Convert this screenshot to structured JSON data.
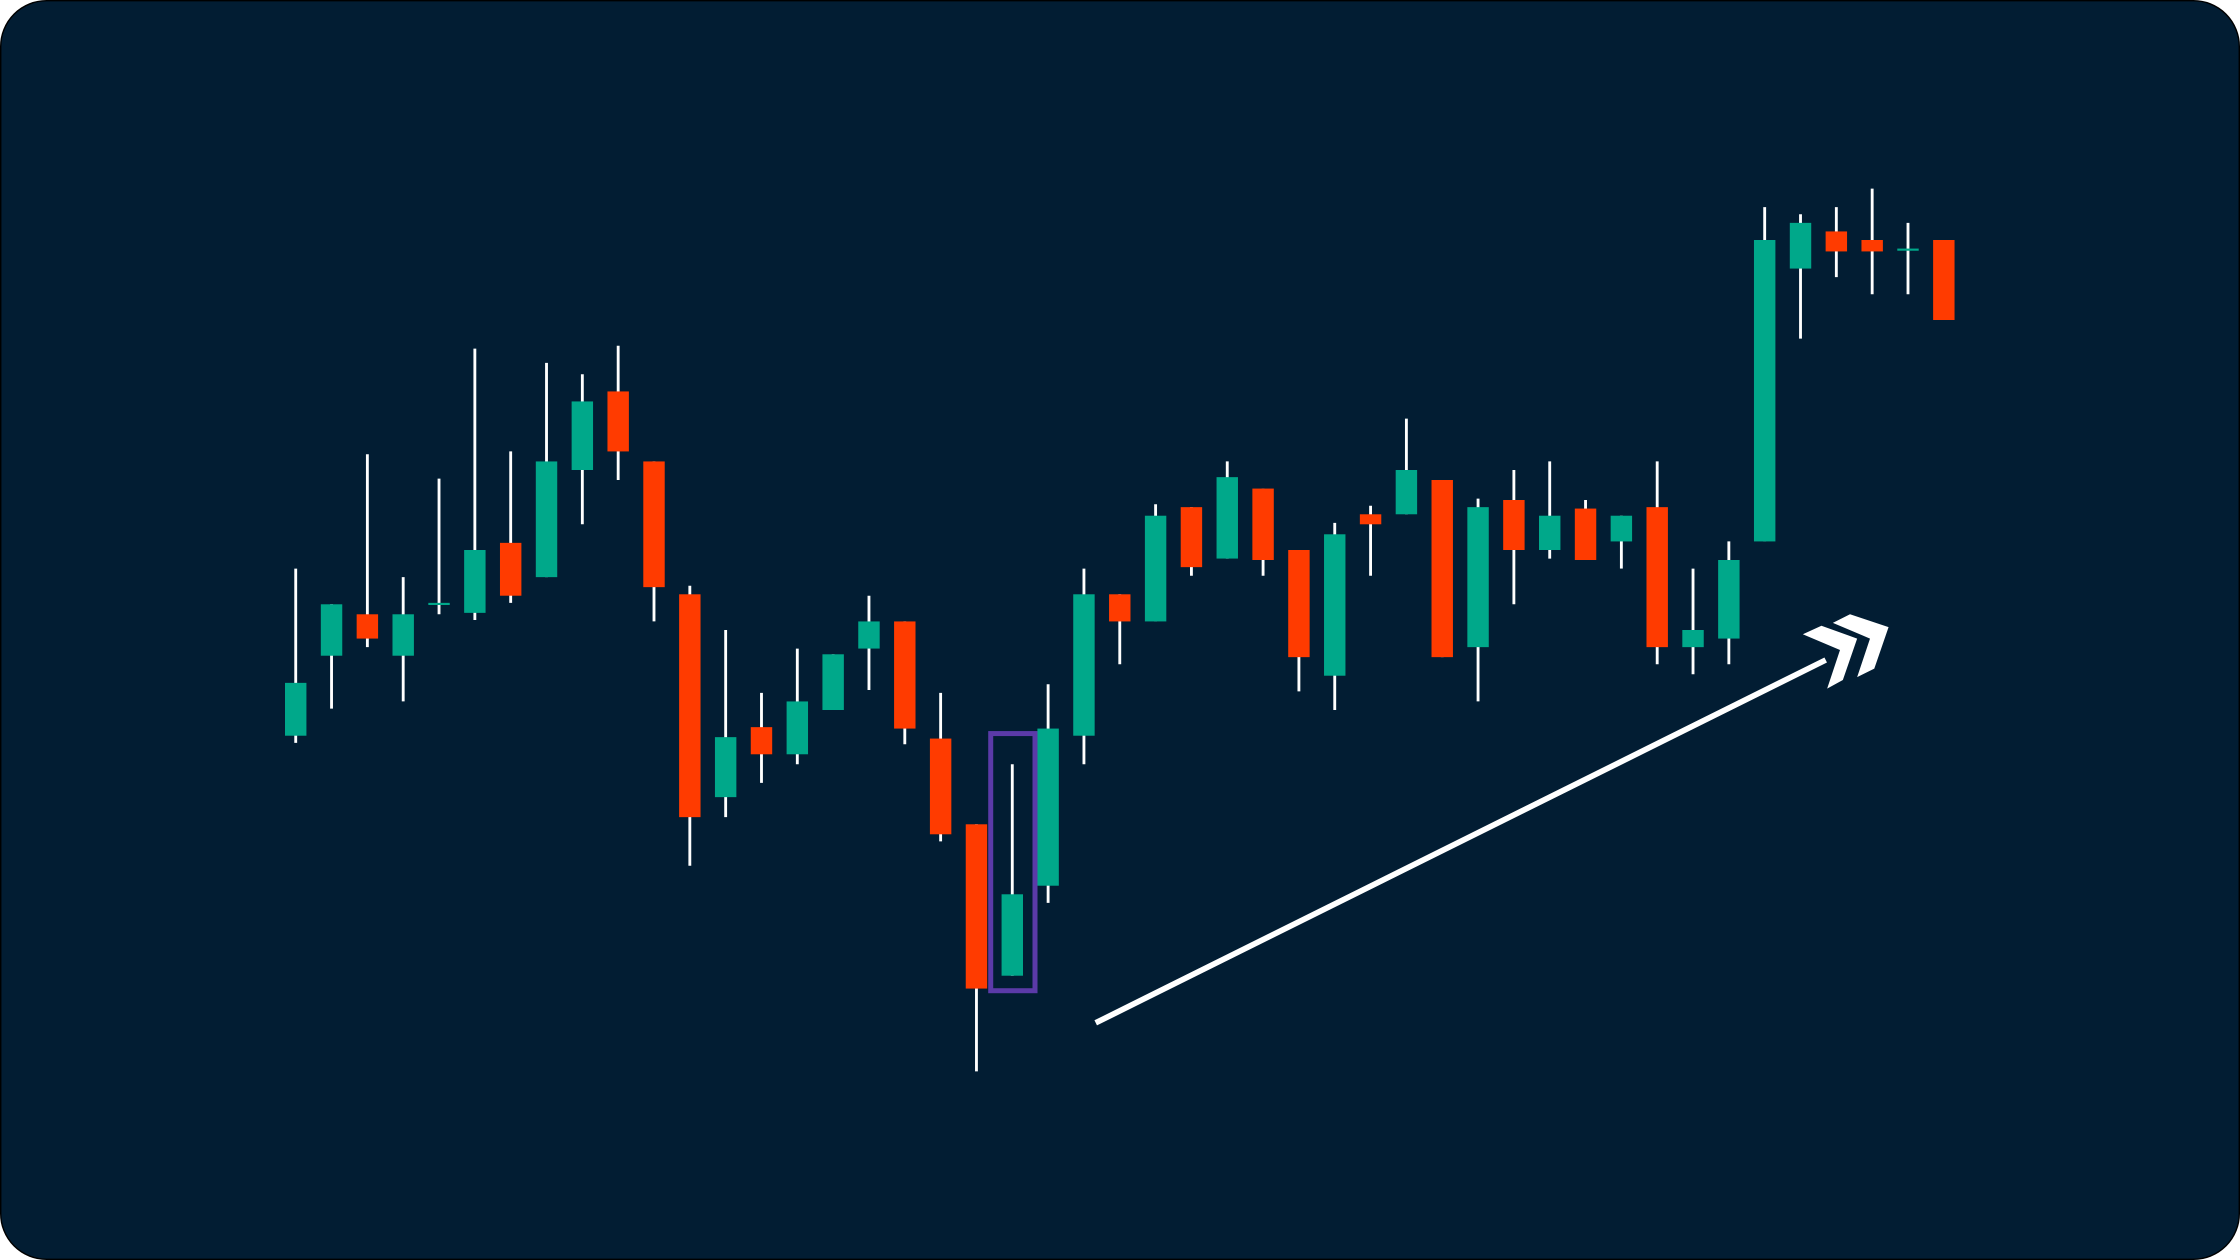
{
  "chart_data": {
    "type": "candlestick",
    "categories": [
      null,
      null,
      null,
      null,
      null,
      null,
      null,
      null,
      null,
      null,
      null,
      null,
      null,
      null,
      null,
      null,
      null,
      null,
      null,
      null,
      null,
      null,
      null,
      null,
      null,
      null,
      null,
      null,
      null,
      null,
      null,
      null,
      null,
      null,
      null,
      null,
      null,
      null,
      null,
      null,
      null,
      null,
      null,
      null,
      null,
      null,
      null
    ],
    "open": [
      367,
      423,
      452,
      423,
      459,
      453,
      502,
      478,
      553,
      608,
      559,
      466,
      324,
      373,
      354,
      385,
      428,
      447,
      365,
      305,
      199,
      262,
      367,
      466,
      447,
      527,
      491,
      540,
      497,
      409,
      522,
      522,
      546,
      429,
      532,
      497,
      526,
      503,
      527,
      429,
      435,
      503,
      694,
      720,
      714,
      707,
      714
    ],
    "high": [
      484,
      459,
      564,
      478,
      547,
      638,
      566,
      628,
      620,
      640,
      559,
      472,
      441,
      397,
      428,
      424,
      465,
      447,
      397,
      305,
      347,
      403,
      484,
      466,
      529,
      527,
      559,
      540,
      497,
      516,
      528,
      589,
      546,
      533,
      553,
      559,
      532,
      521,
      559,
      484,
      503,
      737,
      732,
      737,
      750,
      726,
      714
    ],
    "low": [
      362,
      386,
      429,
      391,
      452,
      448,
      460,
      478,
      515,
      546,
      447,
      276,
      310,
      334,
      347,
      385,
      399,
      361,
      293,
      132,
      199,
      250,
      347,
      417,
      447,
      479,
      491,
      479,
      398,
      385,
      479,
      522,
      422,
      391,
      459,
      491,
      490,
      484,
      417,
      410,
      417,
      503,
      645,
      688,
      676,
      676,
      658
    ],
    "close": [
      404,
      459,
      435,
      452,
      460,
      497,
      465,
      559,
      601,
      566,
      471,
      310,
      366,
      354,
      391,
      424,
      447,
      372,
      298,
      190,
      256,
      372,
      466,
      447,
      521,
      485,
      548,
      490,
      422,
      508,
      515,
      553,
      422,
      527,
      497,
      521,
      490,
      521,
      429,
      441,
      490,
      714,
      726,
      706,
      706,
      708,
      658
    ],
    "up_color": "#00a88a",
    "down_color": "#ff3b00",
    "wick_color": "#ffffff",
    "ylim": [
      0,
      882
    ]
  }
}
